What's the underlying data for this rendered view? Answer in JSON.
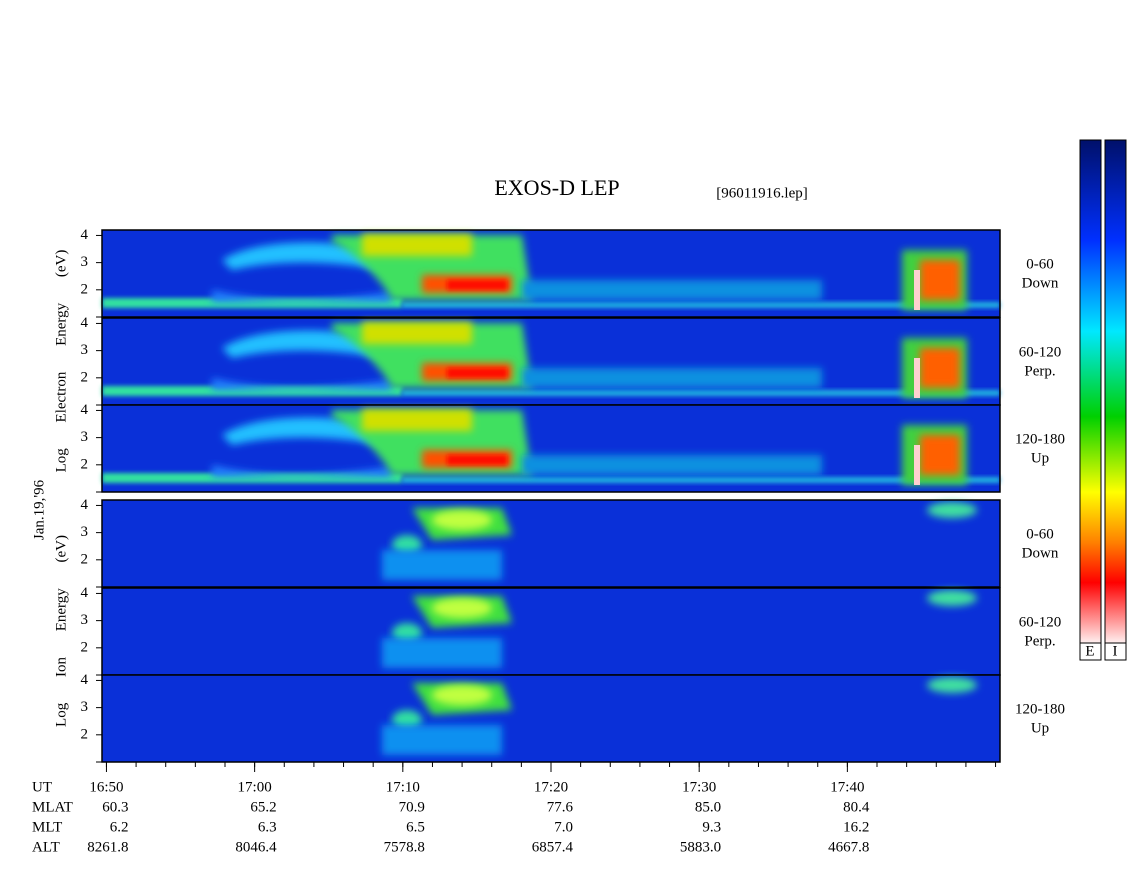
{
  "chart_data": {
    "type": "spectrogram",
    "title": "EXOS-D LEP",
    "file_label": "[96011916.lep]",
    "date_label": "Jan.19,'96",
    "groups": [
      {
        "axis_label": "Log Electron Energy (eV)",
        "panels": [
          {
            "angle": "0-60",
            "direction": "Down"
          },
          {
            "angle": "60-120",
            "direction": "Perp."
          },
          {
            "angle": "120-180",
            "direction": "Up"
          }
        ]
      },
      {
        "axis_label": "Log Ion Energy (eV)",
        "panels": [
          {
            "angle": "0-60",
            "direction": "Down"
          },
          {
            "angle": "60-120",
            "direction": "Perp."
          },
          {
            "angle": "120-180",
            "direction": "Up"
          }
        ]
      }
    ],
    "ylim": [
      1,
      4.2
    ],
    "yticks": [
      {
        "value": 1,
        "label": ""
      },
      2,
      3,
      4
    ],
    "xlim": [
      1009.7,
      1070.3
    ],
    "xticks": [
      {
        "value": 1010,
        "label": "16:50"
      },
      {
        "value": 1020,
        "label": "17:00"
      },
      {
        "value": 1030,
        "label": "17:10"
      },
      {
        "value": 1040,
        "label": "17:20"
      },
      {
        "value": 1050,
        "label": "17:30"
      },
      {
        "value": 1060,
        "label": "17:40"
      }
    ],
    "xminor_step": 2,
    "colorbar_labels": [
      "E",
      "I"
    ],
    "ephemeris": {
      "time_label": "UT",
      "rows": [
        {
          "label": "MLAT",
          "values": [
            "60.3",
            "65.2",
            "70.9",
            "77.6",
            "85.0",
            "80.4"
          ]
        },
        {
          "label": "MLT",
          "values": [
            "6.2",
            "6.3",
            "6.5",
            "7.0",
            "9.3",
            "16.2"
          ]
        },
        {
          "label": "ALT",
          "values": [
            "8261.8",
            "8046.4",
            "7578.8",
            "6857.4",
            "5883.0",
            "4667.8"
          ]
        }
      ]
    }
  }
}
